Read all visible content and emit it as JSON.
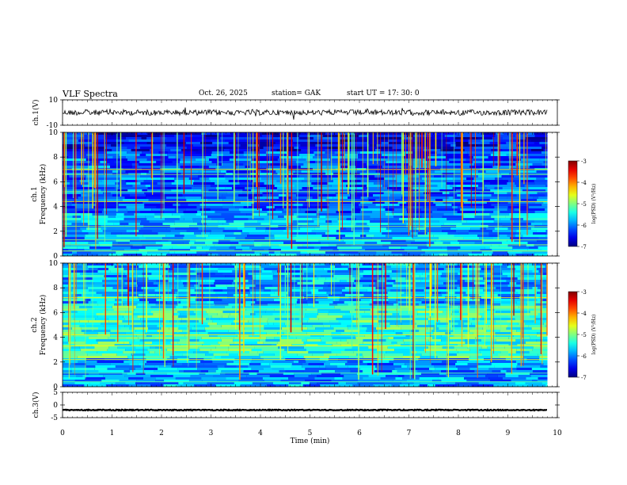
{
  "header": {
    "title": "VLF  Spectra",
    "date": "Oct. 26, 2025",
    "station": "station= GAK",
    "start_time": "start  UT  =    17: 30: 0"
  },
  "chart_data": {
    "type": "heatmap",
    "title": "VLF  Spectra",
    "xlabel": "Time  (min)",
    "xlim": [
      0,
      10
    ],
    "x_ticks": [
      "0",
      "1",
      "2",
      "3",
      "4",
      "5",
      "6",
      "7",
      "8",
      "9",
      "10"
    ],
    "panels": [
      {
        "name": "ch1-waveform",
        "type": "line",
        "ylabel": "ch.1(V)",
        "ylim": [
          -10,
          10
        ],
        "y_ticks": [
          "10",
          "-10"
        ],
        "baseline_value": 0,
        "trace_length_min": 9.8
      },
      {
        "name": "ch1-spectrogram",
        "type": "heatmap",
        "ylabel": "ch.1",
        "ylabel2": "Frequency  (kHz)",
        "ylim": [
          0,
          10
        ],
        "y_ticks": [
          "0",
          "2",
          "4",
          "6",
          "8",
          "10"
        ],
        "data_end_min": 9.8,
        "colorbar": {
          "label": "log(PSD) (V²/Hz)",
          "ticks": [
            "-3",
            "-4",
            "-5",
            "-6",
            "-7"
          ],
          "range": [
            -7,
            -3
          ]
        }
      },
      {
        "name": "ch2-spectrogram",
        "type": "heatmap",
        "ylabel": "ch.2",
        "ylabel2": "Frequency  (kHz)",
        "ylim": [
          0,
          10
        ],
        "y_ticks": [
          "0",
          "2",
          "4",
          "6",
          "8",
          "10"
        ],
        "data_end_min": 9.8,
        "colorbar": {
          "label": "log(PSD) (V²/Hz)",
          "ticks": [
            "-3",
            "-4",
            "-5",
            "-6",
            "-7"
          ],
          "range": [
            -7,
            -3
          ]
        }
      },
      {
        "name": "ch3-waveform",
        "type": "line",
        "ylabel": "ch.3(V)",
        "ylim": [
          -5,
          5
        ],
        "y_ticks": [
          "5",
          "0",
          "-5"
        ],
        "baseline_value": -2,
        "trace_length_min": 9.8
      }
    ]
  }
}
